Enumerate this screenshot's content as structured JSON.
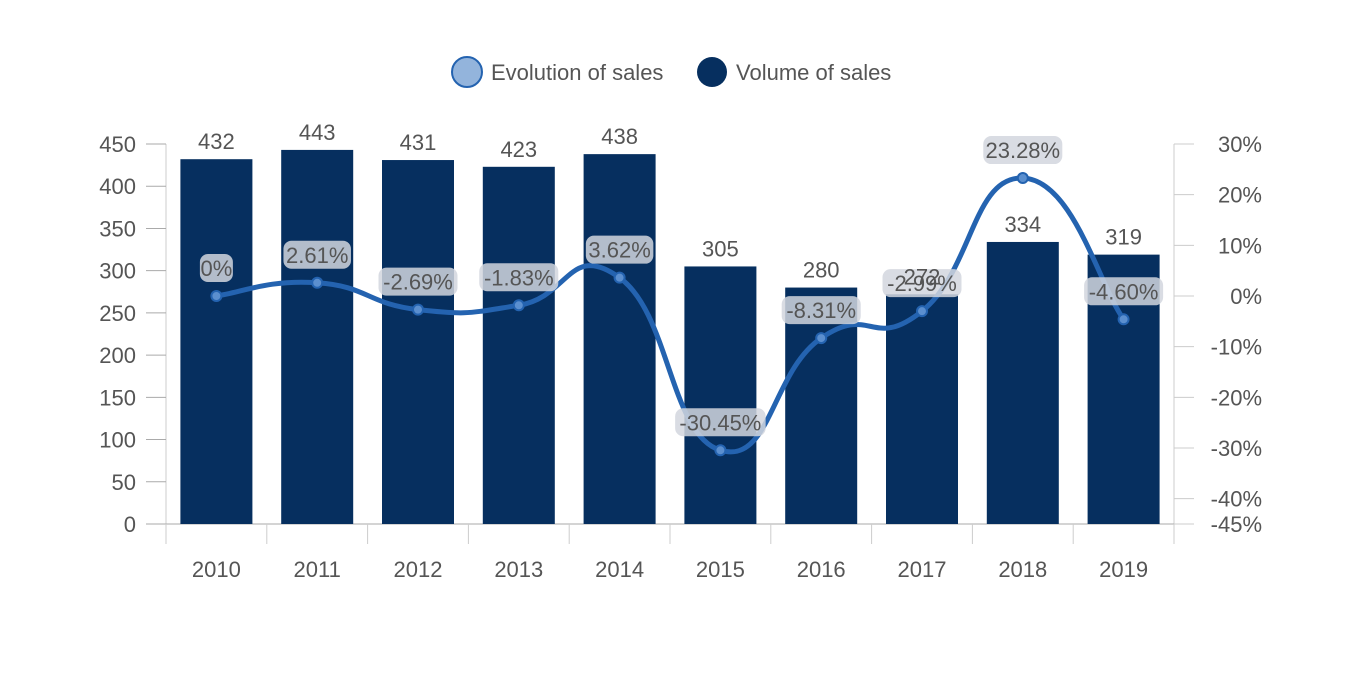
{
  "chart_data": {
    "type": "bar",
    "categories": [
      "2010",
      "2011",
      "2012",
      "2013",
      "2014",
      "2015",
      "2016",
      "2017",
      "2018",
      "2019"
    ],
    "series": [
      {
        "name": "Volume of sales",
        "type": "bar",
        "axis": "left",
        "values": [
          432,
          443,
          431,
          423,
          438,
          305,
          280,
          272,
          334,
          319
        ],
        "color": "#062f5f"
      },
      {
        "name": "Evolution of sales",
        "type": "line",
        "axis": "right",
        "values": [
          0,
          2.61,
          -2.69,
          -1.83,
          3.62,
          -30.45,
          -8.31,
          -2.99,
          23.28,
          -4.6
        ],
        "labels": [
          "0%",
          "2.61%",
          "-2.69%",
          "-1.83%",
          "3.62%",
          "-30.45%",
          "-8.31%",
          "-2.99%",
          "23.28%",
          "-4.60%"
        ],
        "color": "#2463b0",
        "legend_marker_color": "#93b4dc"
      }
    ],
    "yleft": {
      "ylim": [
        0,
        450
      ],
      "ticks": [
        "0",
        "50",
        "100",
        "150",
        "200",
        "250",
        "300",
        "350",
        "400",
        "450"
      ]
    },
    "yright": {
      "ylim": [
        -45,
        30
      ],
      "ticks": [
        -45,
        -40,
        -30,
        -20,
        -10,
        0,
        10,
        20,
        30
      ],
      "tick_labels": [
        "-45%",
        "-40%",
        "-30%",
        "-20%",
        "-10%",
        "0%",
        "10%",
        "20%",
        "30%"
      ]
    },
    "legend": {
      "position": "top-center",
      "entries": [
        "Evolution of sales",
        "Volume of sales"
      ]
    },
    "grid": false
  }
}
